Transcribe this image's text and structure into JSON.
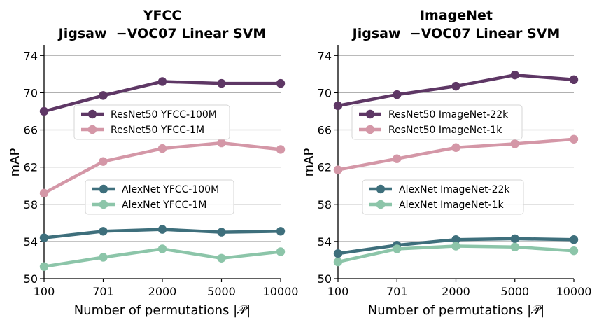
{
  "chart_data": [
    {
      "type": "line",
      "title": "YFCC",
      "subtitle": "Jigsaw  −VOC07 Linear SVM",
      "xlabel": "Number of permutations |𝒫|",
      "ylabel": "mAP",
      "categories": [
        "100",
        "701",
        "2000",
        "5000",
        "10000"
      ],
      "ylim": [
        50,
        75
      ],
      "yticks": [
        "50",
        "54",
        "58",
        "62",
        "66",
        "70",
        "74"
      ],
      "grid": "horizontal",
      "series": [
        {
          "name": "ResNet50 YFCC-100M",
          "color": "#5e3765",
          "values": [
            68.0,
            69.7,
            71.2,
            71.0,
            71.0
          ]
        },
        {
          "name": "ResNet50 YFCC-1M",
          "color": "#d497a7",
          "values": [
            59.2,
            62.6,
            64.0,
            64.6,
            63.9
          ]
        },
        {
          "name": "AlexNet YFCC-100M",
          "color": "#3e6f7c",
          "values": [
            54.4,
            55.1,
            55.3,
            55.0,
            55.1
          ]
        },
        {
          "name": "AlexNet YFCC-1M",
          "color": "#8cc5a9",
          "values": [
            51.3,
            52.3,
            53.2,
            52.2,
            52.9
          ]
        }
      ],
      "legends": [
        {
          "series": [
            0,
            1
          ],
          "placement": "center-left, upper"
        },
        {
          "series": [
            2,
            3
          ],
          "placement": "center-left, lower"
        }
      ]
    },
    {
      "type": "line",
      "title": "ImageNet",
      "subtitle": "Jigsaw  −VOC07 Linear SVM",
      "xlabel": "Number of permutations |𝒫|",
      "ylabel": "mAP",
      "categories": [
        "100",
        "701",
        "2000",
        "5000",
        "10000"
      ],
      "ylim": [
        50,
        75
      ],
      "yticks": [
        "50",
        "54",
        "58",
        "62",
        "66",
        "70",
        "74"
      ],
      "grid": "horizontal",
      "series": [
        {
          "name": "ResNet50 ImageNet-22k",
          "color": "#5e3765",
          "values": [
            68.6,
            69.8,
            70.7,
            71.9,
            71.4
          ]
        },
        {
          "name": "ResNet50 ImageNet-1k",
          "color": "#d497a7",
          "values": [
            61.7,
            62.9,
            64.1,
            64.5,
            65.0
          ]
        },
        {
          "name": "AlexNet ImageNet-22k",
          "color": "#3e6f7c",
          "values": [
            52.7,
            53.6,
            54.2,
            54.3,
            54.2
          ]
        },
        {
          "name": "AlexNet ImageNet-1k",
          "color": "#8cc5a9",
          "values": [
            51.8,
            53.2,
            53.5,
            53.4,
            53.0
          ]
        }
      ],
      "legends": [
        {
          "series": [
            0,
            1
          ],
          "placement": "center-left, upper"
        },
        {
          "series": [
            2,
            3
          ],
          "placement": "center-left, lower"
        }
      ]
    }
  ]
}
